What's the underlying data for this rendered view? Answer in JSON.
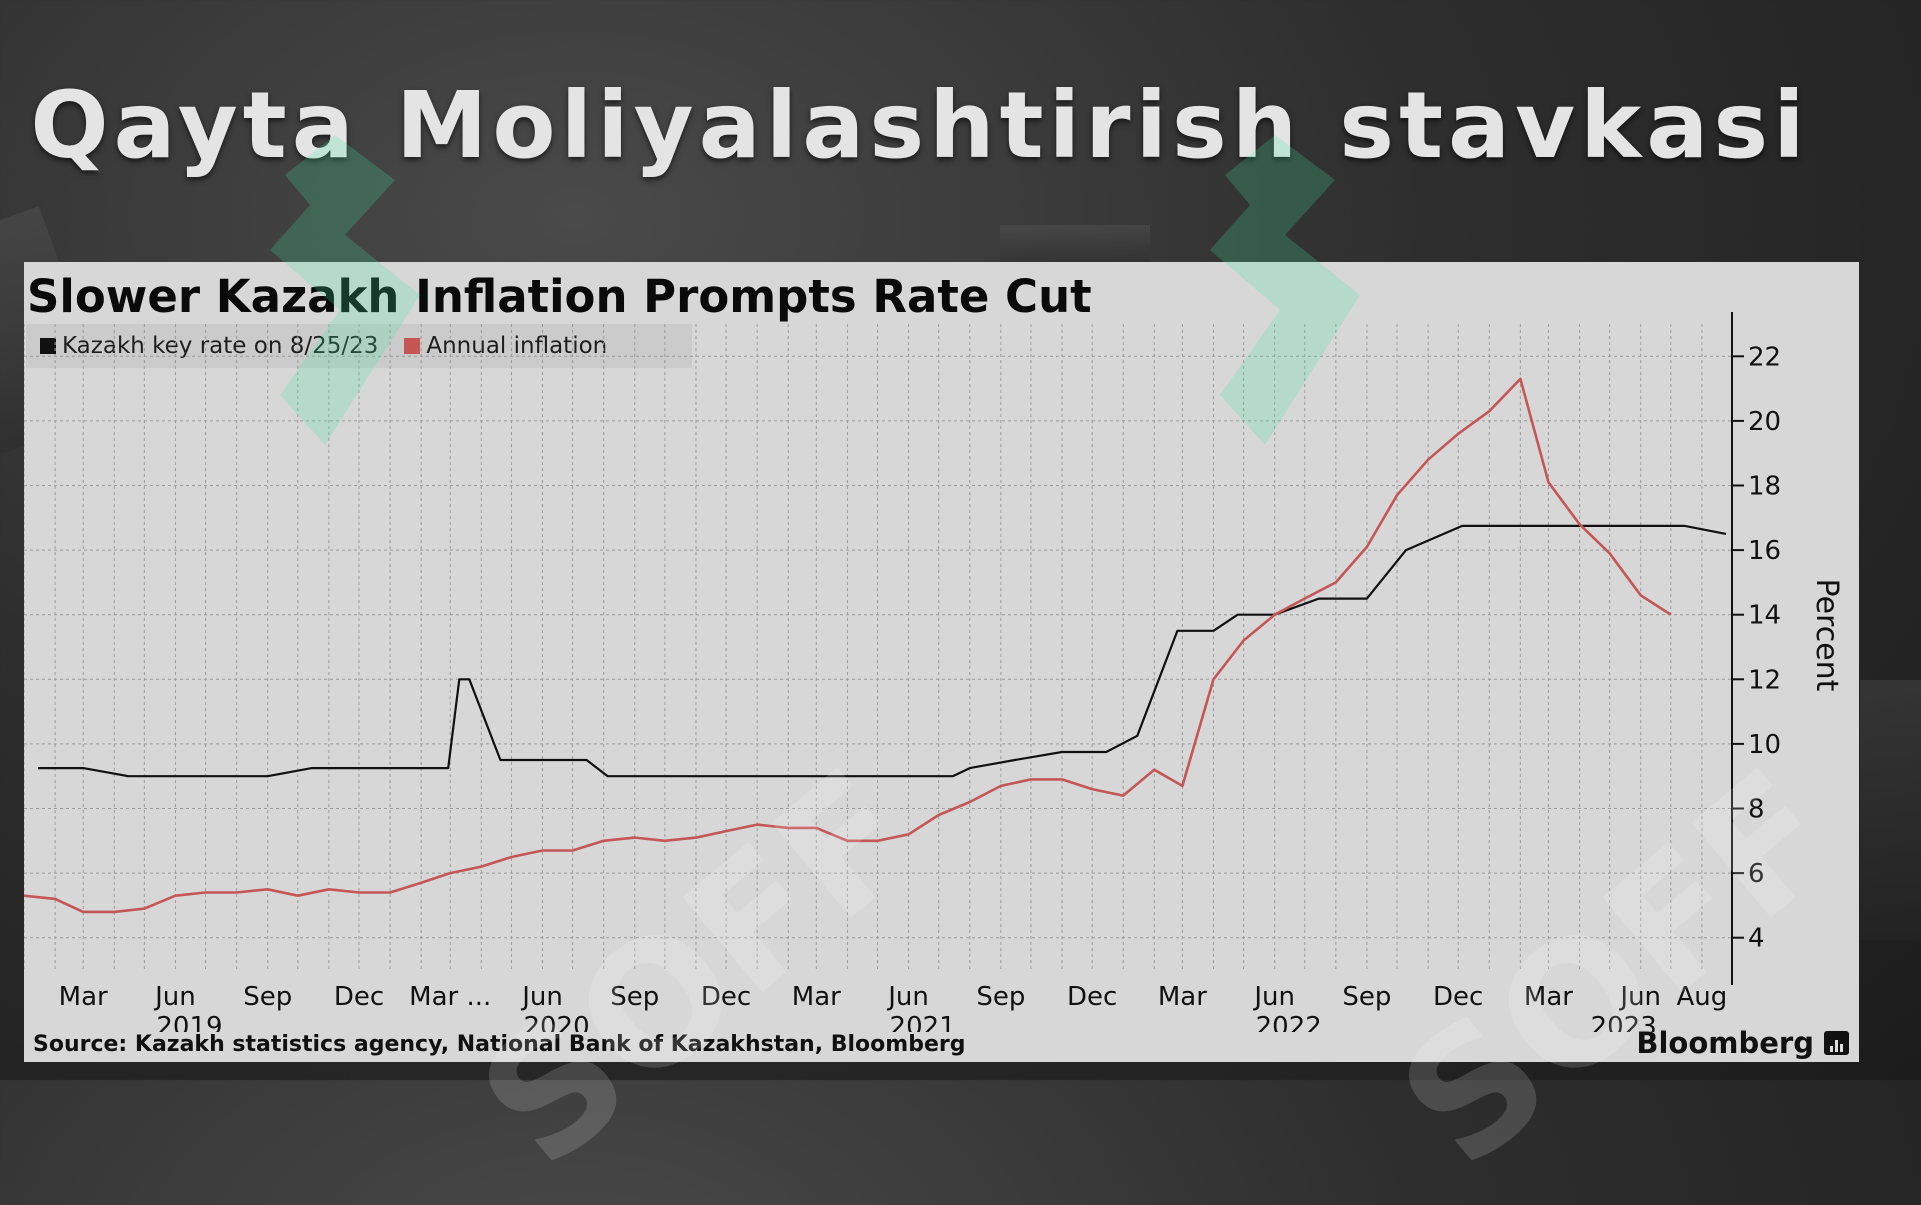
{
  "slide": {
    "title": "Qayta Moliyalashtirish stavkasi"
  },
  "chart_data": {
    "type": "line",
    "title": "Slower Kazakh Inflation Prompts Rate Cut",
    "ylabel": "Percent",
    "ylim": [
      3,
      23
    ],
    "xlim": [
      "2019-01-01",
      "2023-08-31"
    ],
    "y_ticks": [
      4,
      6,
      8,
      10,
      12,
      14,
      16,
      18,
      20,
      22
    ],
    "y_tick_labels": [
      "4",
      "6",
      "8",
      "10",
      "12",
      "14",
      "16",
      "18",
      "20",
      "22"
    ],
    "x_ticks": [
      {
        "date": "2019-03-01",
        "label": "Mar"
      },
      {
        "date": "2019-06-01",
        "label": "Jun"
      },
      {
        "date": "2019-09-01",
        "label": "Sep"
      },
      {
        "date": "2019-12-01",
        "label": "Dec"
      },
      {
        "date": "2020-03-01",
        "label": "Mar ..."
      },
      {
        "date": "2020-06-01",
        "label": "Jun"
      },
      {
        "date": "2020-09-01",
        "label": "Sep"
      },
      {
        "date": "2020-12-01",
        "label": "Dec"
      },
      {
        "date": "2021-03-01",
        "label": "Mar"
      },
      {
        "date": "2021-06-01",
        "label": "Jun"
      },
      {
        "date": "2021-09-01",
        "label": "Sep"
      },
      {
        "date": "2021-12-01",
        "label": "Dec"
      },
      {
        "date": "2022-03-01",
        "label": "Mar"
      },
      {
        "date": "2022-06-01",
        "label": "Jun"
      },
      {
        "date": "2022-09-01",
        "label": "Sep"
      },
      {
        "date": "2022-12-01",
        "label": "Dec"
      },
      {
        "date": "2023-03-01",
        "label": "Mar"
      },
      {
        "date": "2023-06-01",
        "label": "Jun"
      },
      {
        "date": "2023-08-01",
        "label": "Aug"
      }
    ],
    "year_labels": [
      {
        "date": "2019-06-15",
        "label": "2019"
      },
      {
        "date": "2020-06-15",
        "label": "2020"
      },
      {
        "date": "2021-06-15",
        "label": "2021"
      },
      {
        "date": "2022-06-15",
        "label": "2022"
      },
      {
        "date": "2023-05-15",
        "label": "2023"
      }
    ],
    "grid": true,
    "legend_position": "top-left",
    "series": [
      {
        "name": "Kazakh key rate on 8/25/23",
        "color": "#111111",
        "points": [
          [
            "2019-01-15",
            9.25
          ],
          [
            "2019-03-01",
            9.25
          ],
          [
            "2019-04-15",
            9.0
          ],
          [
            "2019-09-01",
            9.0
          ],
          [
            "2019-10-15",
            9.25
          ],
          [
            "2020-02-28",
            9.25
          ],
          [
            "2020-03-10",
            12.0
          ],
          [
            "2020-03-20",
            12.0
          ],
          [
            "2020-04-20",
            9.5
          ],
          [
            "2020-07-15",
            9.5
          ],
          [
            "2020-08-05",
            9.0
          ],
          [
            "2021-07-15",
            9.0
          ],
          [
            "2021-08-01",
            9.25
          ],
          [
            "2021-09-15",
            9.5
          ],
          [
            "2021-11-01",
            9.75
          ],
          [
            "2021-12-15",
            9.75
          ],
          [
            "2022-01-15",
            10.25
          ],
          [
            "2022-02-24",
            13.5
          ],
          [
            "2022-04-01",
            13.5
          ],
          [
            "2022-04-25",
            14.0
          ],
          [
            "2022-06-01",
            14.0
          ],
          [
            "2022-07-15",
            14.5
          ],
          [
            "2022-09-01",
            14.5
          ],
          [
            "2022-10-10",
            16.0
          ],
          [
            "2022-12-05",
            16.75
          ],
          [
            "2023-07-15",
            16.75
          ],
          [
            "2023-08-25",
            16.5
          ]
        ]
      },
      {
        "name": "Annual inflation",
        "color": "#c55656",
        "points": [
          [
            "2019-01-01",
            5.3
          ],
          [
            "2019-02-01",
            5.2
          ],
          [
            "2019-03-01",
            4.8
          ],
          [
            "2019-04-01",
            4.8
          ],
          [
            "2019-05-01",
            4.9
          ],
          [
            "2019-06-01",
            5.3
          ],
          [
            "2019-07-01",
            5.4
          ],
          [
            "2019-08-01",
            5.4
          ],
          [
            "2019-09-01",
            5.5
          ],
          [
            "2019-10-01",
            5.3
          ],
          [
            "2019-11-01",
            5.5
          ],
          [
            "2019-12-01",
            5.4
          ],
          [
            "2020-01-01",
            5.4
          ],
          [
            "2020-02-01",
            5.7
          ],
          [
            "2020-03-01",
            6.0
          ],
          [
            "2020-04-01",
            6.2
          ],
          [
            "2020-05-01",
            6.5
          ],
          [
            "2020-06-01",
            6.7
          ],
          [
            "2020-07-01",
            6.7
          ],
          [
            "2020-08-01",
            7.0
          ],
          [
            "2020-09-01",
            7.1
          ],
          [
            "2020-10-01",
            7.0
          ],
          [
            "2020-11-01",
            7.1
          ],
          [
            "2020-12-01",
            7.3
          ],
          [
            "2021-01-01",
            7.5
          ],
          [
            "2021-02-01",
            7.4
          ],
          [
            "2021-03-01",
            7.4
          ],
          [
            "2021-04-01",
            7.0
          ],
          [
            "2021-05-01",
            7.0
          ],
          [
            "2021-06-01",
            7.2
          ],
          [
            "2021-07-01",
            7.8
          ],
          [
            "2021-08-01",
            8.2
          ],
          [
            "2021-09-01",
            8.7
          ],
          [
            "2021-10-01",
            8.9
          ],
          [
            "2021-11-01",
            8.9
          ],
          [
            "2021-12-01",
            8.6
          ],
          [
            "2022-01-01",
            8.4
          ],
          [
            "2022-02-01",
            9.2
          ],
          [
            "2022-03-01",
            8.7
          ],
          [
            "2022-04-01",
            12.0
          ],
          [
            "2022-05-01",
            13.2
          ],
          [
            "2022-06-01",
            14.0
          ],
          [
            "2022-07-01",
            14.5
          ],
          [
            "2022-08-01",
            15.0
          ],
          [
            "2022-09-01",
            16.1
          ],
          [
            "2022-10-01",
            17.7
          ],
          [
            "2022-11-01",
            18.8
          ],
          [
            "2022-12-01",
            19.6
          ],
          [
            "2023-01-01",
            20.3
          ],
          [
            "2023-02-01",
            21.3
          ],
          [
            "2023-03-01",
            18.1
          ],
          [
            "2023-04-01",
            16.8
          ],
          [
            "2023-05-01",
            15.9
          ],
          [
            "2023-06-01",
            14.6
          ],
          [
            "2023-07-01",
            14.0
          ]
        ]
      }
    ]
  },
  "footer": {
    "source": "Source: Kazakh statistics agency, National Bank of Kazakhstan, Bloomberg",
    "brand": "Bloomberg"
  },
  "watermark": {
    "text": "SOFF"
  }
}
